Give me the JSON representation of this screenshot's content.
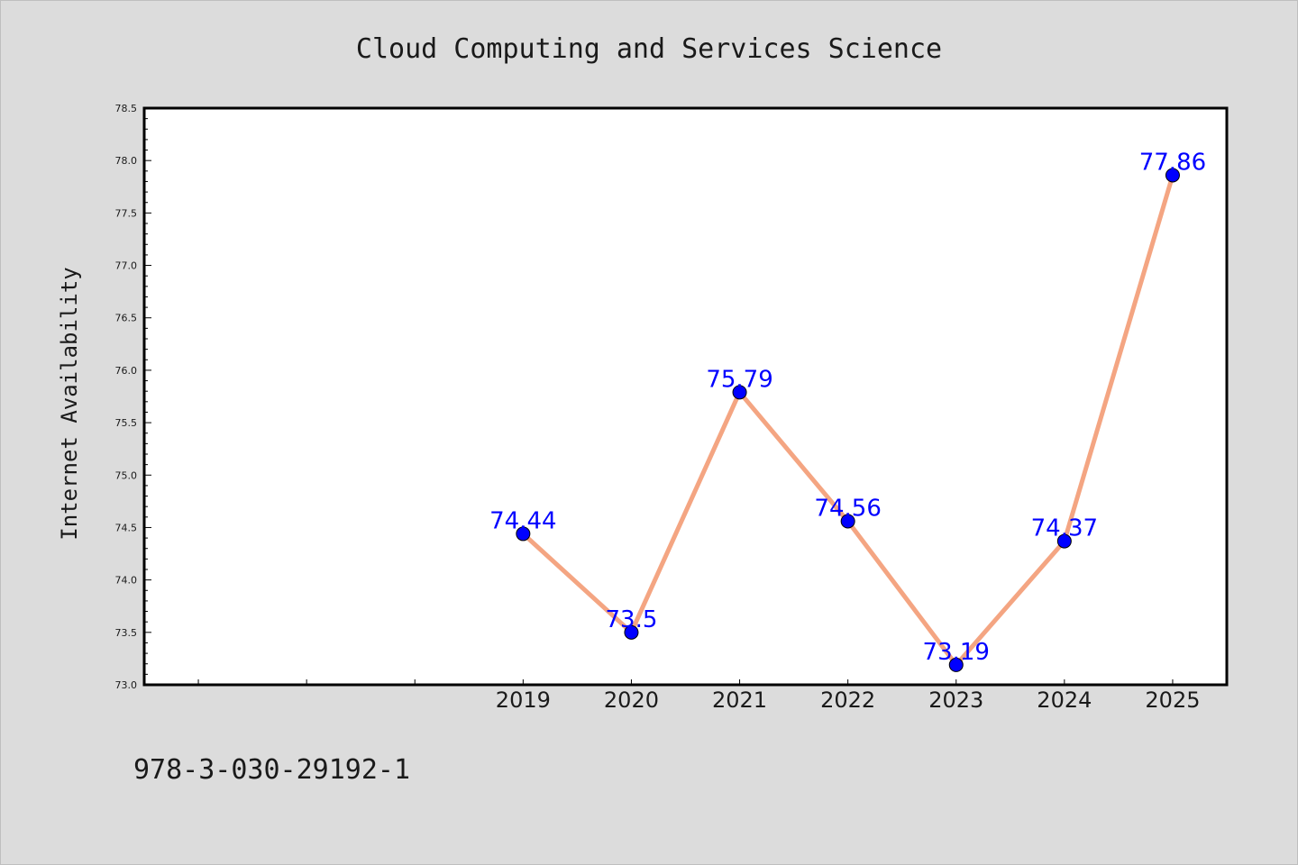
{
  "footer": {
    "isbn": "978-3-030-29192-1"
  },
  "colors": {
    "line": "#f4a582",
    "marker": "#0000ff",
    "label": "#0000ff",
    "background": "#dcdcdc",
    "plot_background": "#ffffff"
  },
  "chart_data": {
    "type": "line",
    "title": "Cloud Computing and Services Science",
    "xlabel": "",
    "ylabel": "Internet Availability",
    "categories": [
      "2019",
      "2020",
      "2021",
      "2022",
      "2023",
      "2024",
      "2025"
    ],
    "x_axis_slots": 10,
    "first_category_slot": 3,
    "series": [
      {
        "values": [
          74.44,
          73.5,
          75.79,
          74.56,
          73.19,
          74.37,
          77.86
        ]
      }
    ],
    "data_labels": [
      "74.44",
      "73.5",
      "75.79",
      "74.56",
      "73.19",
      "74.37",
      "77.86"
    ],
    "ylim": [
      73.0,
      78.5
    ],
    "yticks": [
      "73.0",
      "73.5",
      "74.0",
      "74.5",
      "75.0",
      "75.5",
      "76.0",
      "76.5",
      "77.0",
      "77.5",
      "78.0",
      "78.5"
    ],
    "grid": false,
    "legend": "none"
  }
}
